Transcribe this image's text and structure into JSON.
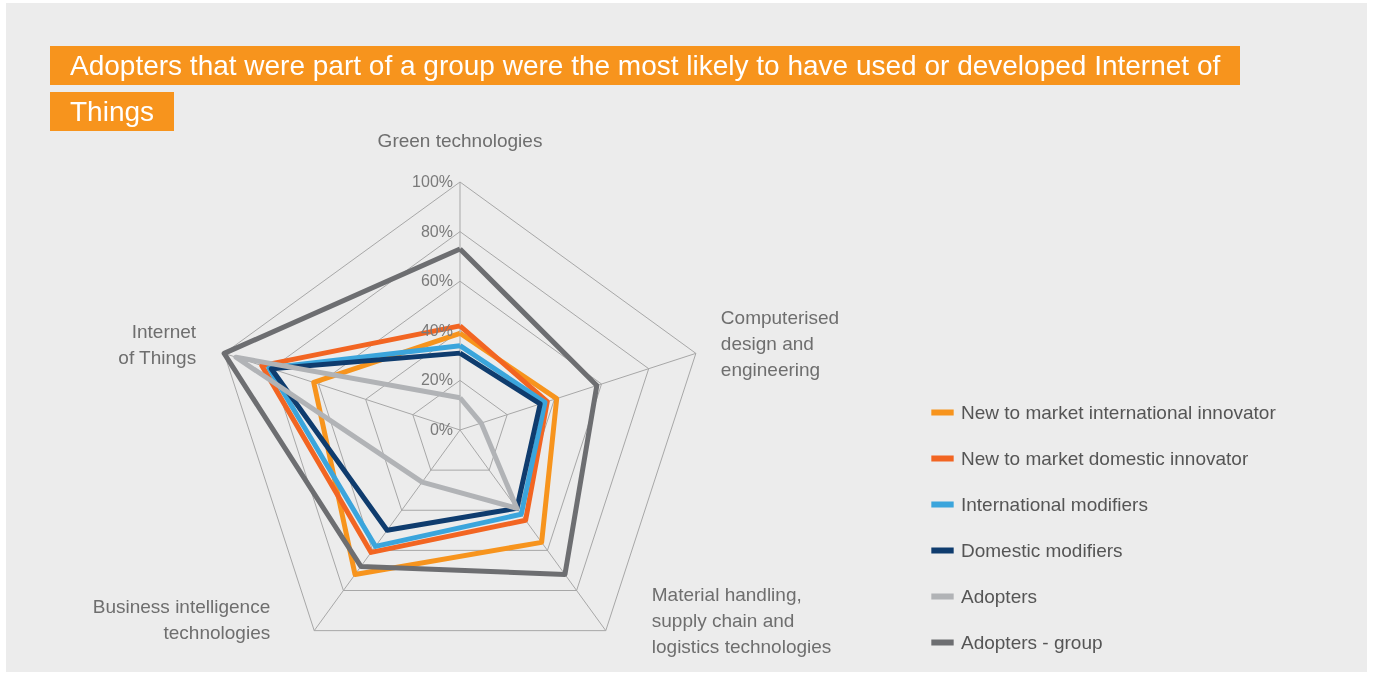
{
  "chart_data": {
    "type": "radar",
    "title": "Adopters that were part of a group were the most likely to have used or developed Internet of Things",
    "categories": [
      "Green technologies",
      "Computerised design and engineering",
      "Material handling, supply chain and logistics technologies",
      "Business intelligence technologies",
      "Internet of Things"
    ],
    "ylim": [
      0,
      100
    ],
    "yticks": [
      {
        "value": 0,
        "label": "0%"
      },
      {
        "value": 20,
        "label": "20%"
      },
      {
        "value": 40,
        "label": "40%"
      },
      {
        "value": 60,
        "label": "60%"
      },
      {
        "value": 80,
        "label": "80%"
      },
      {
        "value": 100,
        "label": "100%"
      }
    ],
    "grid": true,
    "legend": "right",
    "series": [
      {
        "name": "New to market international innovator",
        "color": "#f7941d",
        "values": [
          39,
          41,
          56,
          72,
          62
        ]
      },
      {
        "name": "New to market domestic innovator",
        "color": "#f26522",
        "values": [
          42,
          37,
          45,
          61,
          84
        ]
      },
      {
        "name": "International modifiers",
        "color": "#3ba5dc",
        "values": [
          34,
          36,
          42,
          58,
          81
        ]
      },
      {
        "name": "Domestic modifiers",
        "color": "#0f3c6e",
        "values": [
          31,
          34,
          39,
          50,
          80
        ]
      },
      {
        "name": "Adopters",
        "color": "#b1b3b6",
        "values": [
          13,
          9,
          39,
          26,
          95
        ]
      },
      {
        "name": "Adopters - group",
        "color": "#6d6e71",
        "values": [
          73,
          58,
          72,
          68,
          100
        ]
      }
    ]
  }
}
